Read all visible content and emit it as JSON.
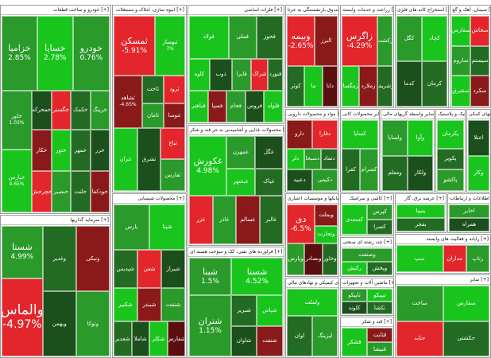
{
  "colors": {
    "strong_green": "#19c51c",
    "green": "#2a9a2a",
    "dark_green": "#236b23",
    "deep_green": "#1b4f1b",
    "red": "#e3262b",
    "dark_red": "#8a1a1a",
    "deep_red": "#5a0e0e"
  },
  "sectors": [
    {
      "key": "s1",
      "title": "خودرو و ساخت قطعات [+]",
      "tiles": [
        {
          "name": "خودرو",
          "pct": "0.76%"
        },
        {
          "name": "خساپا",
          "pct": "2.78%"
        },
        {
          "name": "خزامیا",
          "pct": "2.85%"
        },
        {
          "name": "خاور",
          "pct": "1.03%"
        },
        {
          "name": "خپارس",
          "pct": "4.65%"
        },
        {
          "name": "خمحرکه",
          "pct": ""
        },
        {
          "name": "خگستر",
          "pct": ""
        },
        {
          "name": "خکمک",
          "pct": ""
        },
        {
          "name": "خرینگ",
          "pct": ""
        },
        {
          "name": "خکار",
          "pct": ""
        },
        {
          "name": "ختور",
          "pct": ""
        },
        {
          "name": "خمهر",
          "pct": ""
        },
        {
          "name": "خزر",
          "pct": ""
        },
        {
          "name": "خچرخش",
          "pct": ""
        },
        {
          "name": "خنصیر",
          "pct": ""
        },
        {
          "name": "خلنت",
          "pct": ""
        },
        {
          "name": "خودکفا",
          "pct": ""
        },
        {
          "name": "خشرق",
          "pct": ""
        },
        {
          "name": "خاهن",
          "pct": ""
        }
      ]
    },
    {
      "key": "s2",
      "title": "انبوه سازی، املاک و مستغلات [+]",
      "tiles": [
        {
          "name": "ثمسکن",
          "pct": "-5.91%"
        },
        {
          "name": "ثبهساز",
          "pct": "7%"
        },
        {
          "name": "ثشاهد",
          "pct": "-4.65%"
        },
        {
          "name": "ثاخت",
          "pct": ""
        },
        {
          "name": "ثرود",
          "pct": ""
        },
        {
          "name": "ثامان",
          "pct": ""
        },
        {
          "name": "ثنوسا",
          "pct": ""
        },
        {
          "name": "ثتران",
          "pct": ""
        },
        {
          "name": "ثشرق",
          "pct": ""
        },
        {
          "name": "ثباغ",
          "pct": ""
        },
        {
          "name": "ثفارس",
          "pct": ""
        }
      ]
    },
    {
      "key": "s3",
      "title": "فلزات اساسی [+]",
      "tiles": [
        {
          "name": "فولاد",
          "pct": ""
        },
        {
          "name": "فملی",
          "pct": ""
        },
        {
          "name": "فخوز",
          "pct": ""
        },
        {
          "name": "کاوه",
          "pct": ""
        },
        {
          "name": "ذوب",
          "pct": ""
        },
        {
          "name": "فایرا",
          "pct": ""
        },
        {
          "name": "شراک",
          "pct": ""
        },
        {
          "name": "فنورد",
          "pct": ""
        },
        {
          "name": "فباهنر",
          "pct": ""
        },
        {
          "name": "فسپا",
          "pct": ""
        },
        {
          "name": "فجام",
          "pct": ""
        },
        {
          "name": "فروس",
          "pct": ""
        },
        {
          "name": "فلوله",
          "pct": ""
        },
        {
          "name": "فاسمین",
          "pct": ""
        },
        {
          "name": "فرآور",
          "pct": ""
        }
      ]
    },
    {
      "key": "s4",
      "title": "بیمه وصندوق بازنشستگی به جزتا [+]",
      "tiles": [
        {
          "name": "وبیمه",
          "pct": "-2.65%"
        },
        {
          "name": "البرز",
          "pct": ""
        },
        {
          "name": "کوثر",
          "pct": ""
        },
        {
          "name": "ما",
          "pct": ""
        },
        {
          "name": "دانا",
          "pct": ""
        },
        {
          "name": "آسیا",
          "pct": ""
        },
        {
          "name": "بپاس",
          "pct": ""
        },
        {
          "name": "اتکای",
          "pct": ""
        },
        {
          "name": "بنو",
          "pct": ""
        }
      ]
    },
    {
      "key": "s5",
      "title": "زراعت و خدمات وابسته [+]",
      "tiles": [
        {
          "name": "زاگرس",
          "pct": "-4.29%"
        },
        {
          "name": "زکشت",
          "pct": ""
        },
        {
          "name": "زمگسا",
          "pct": ""
        },
        {
          "name": "زملارد",
          "pct": ""
        },
        {
          "name": "زشریف",
          "pct": ""
        },
        {
          "name": "زدشت",
          "pct": ""
        },
        {
          "name": "زفجر",
          "pct": ""
        }
      ]
    },
    {
      "key": "s6",
      "title": "استخراج کانه های فلزی [+]",
      "tiles": [
        {
          "name": "کگل",
          "pct": ""
        },
        {
          "name": "کچاد",
          "pct": ""
        },
        {
          "name": "کدما",
          "pct": ""
        },
        {
          "name": "کرمان",
          "pct": ""
        },
        {
          "name": "کمنگنز",
          "pct": ""
        },
        {
          "name": "کطبس",
          "pct": ""
        }
      ]
    },
    {
      "key": "s7",
      "title": "سیمان، آهک و گچ [+]",
      "tiles": [
        {
          "name": "سفارس",
          "pct": ""
        },
        {
          "name": "سخاش",
          "pct": ""
        },
        {
          "name": "ساروم",
          "pct": ""
        },
        {
          "name": "سیستم",
          "pct": ""
        },
        {
          "name": "سشرق",
          "pct": ""
        },
        {
          "name": "سکرد",
          "pct": ""
        },
        {
          "name": "سفار",
          "pct": ""
        },
        {
          "name": "سهگمت",
          "pct": ""
        },
        {
          "name": "ساربیل",
          "pct": ""
        }
      ]
    },
    {
      "key": "s8",
      "title": "محصولات غذایی و آشامیدنی به جز قند و شکر [+]",
      "tiles": [
        {
          "name": "غکورش",
          "pct": "4.98%"
        },
        {
          "name": "غمهرن",
          "pct": ""
        },
        {
          "name": "غگل",
          "pct": ""
        },
        {
          "name": "غبشهر",
          "pct": ""
        },
        {
          "name": "غپاک",
          "pct": ""
        },
        {
          "name": "غزر",
          "pct": ""
        },
        {
          "name": "غاذر",
          "pct": ""
        },
        {
          "name": "غسالم",
          "pct": ""
        },
        {
          "name": "غالبر",
          "pct": ""
        },
        {
          "name": "غپینو",
          "pct": ""
        },
        {
          "name": "غشهد",
          "pct": ""
        },
        {
          "name": "غدشت",
          "pct": ""
        }
      ]
    },
    {
      "key": "s9",
      "title": "مواد و محصولات دارویی [+]",
      "tiles": [
        {
          "name": "دارو",
          "pct": ""
        },
        {
          "name": "دفارا",
          "pct": ""
        },
        {
          "name": "دلر",
          "pct": ""
        },
        {
          "name": "دسبحا",
          "pct": ""
        },
        {
          "name": "دتماد",
          "pct": ""
        },
        {
          "name": "دعبید",
          "pct": ""
        },
        {
          "name": "دکیمی",
          "pct": ""
        }
      ]
    },
    {
      "key": "s10",
      "title": "سایر محصولات کانی [+]",
      "tiles": [
        {
          "name": "کساپا",
          "pct": ""
        },
        {
          "name": "کفرا",
          "pct": ""
        },
        {
          "name": "کسرام",
          "pct": ""
        },
        {
          "name": "کلوند",
          "pct": ""
        }
      ]
    },
    {
      "key": "s11",
      "title": "سایر واسطه گریهای مالی [+]",
      "tiles": [
        {
          "name": "ولساپا",
          "pct": ""
        },
        {
          "name": "وآوا",
          "pct": ""
        },
        {
          "name": "ومعلم",
          "pct": ""
        },
        {
          "name": "ولکار",
          "pct": ""
        }
      ]
    },
    {
      "key": "s12",
      "title": "لاستیک و پلاستیک [+]",
      "tiles": [
        {
          "name": "پکرمان",
          "pct": ""
        },
        {
          "name": "پکویر",
          "pct": ""
        },
        {
          "name": "پاکشو",
          "pct": ""
        }
      ]
    },
    {
      "key": "s13",
      "title": "فعالیتهای کمکی [+]",
      "tiles": [
        {
          "name": "اعتلا",
          "pct": ""
        },
        {
          "name": "وکار",
          "pct": ""
        }
      ]
    },
    {
      "key": "s14",
      "title": "بانکها و موسسات اعتباری [+]",
      "tiles": [
        {
          "name": "دی",
          "pct": "-6.5%"
        },
        {
          "name": "وبملت",
          "pct": ""
        },
        {
          "name": "وتجارت",
          "pct": ""
        },
        {
          "name": "وپارس",
          "pct": ""
        },
        {
          "name": "وبصادر",
          "pct": ""
        },
        {
          "name": "وخاور",
          "pct": ""
        },
        {
          "name": "وپست",
          "pct": ""
        },
        {
          "name": "وسینا",
          "pct": ""
        }
      ]
    },
    {
      "key": "s15",
      "title": "کاشی و سرامیک [+]",
      "tiles": [
        {
          "name": "کسعدی",
          "pct": ""
        },
        {
          "name": "کپرس",
          "pct": ""
        },
        {
          "name": "کسرا",
          "pct": ""
        }
      ]
    },
    {
      "key": "s16",
      "title": "سرمایه گذاریها [+]",
      "tiles": [
        {
          "name": "شستا",
          "pct": "4.99%"
        },
        {
          "name": "والماس",
          "pct": "-4.97%"
        },
        {
          "name": "وغدیر",
          "pct": ""
        },
        {
          "name": "ونیکی",
          "pct": ""
        },
        {
          "name": "وبهمن",
          "pct": ""
        },
        {
          "name": "وتوکا",
          "pct": ""
        },
        {
          "name": "وصندوق",
          "pct": ""
        },
        {
          "name": "وسپه",
          "pct": ""
        },
        {
          "name": "وصنا",
          "pct": ""
        },
        {
          "name": "وبوعلی",
          "pct": ""
        }
      ]
    },
    {
      "key": "s17",
      "title": "محصولات شیمیایی [+]",
      "tiles": [
        {
          "name": "پارس",
          "pct": ""
        },
        {
          "name": "شپنا",
          "pct": ""
        },
        {
          "name": "شپدیس",
          "pct": ""
        },
        {
          "name": "شفن",
          "pct": ""
        },
        {
          "name": "شیراز",
          "pct": ""
        },
        {
          "name": "شکبیر",
          "pct": ""
        },
        {
          "name": "شبندر",
          "pct": ""
        },
        {
          "name": "شنفت",
          "pct": ""
        },
        {
          "name": "شغدیر",
          "pct": ""
        },
        {
          "name": "شاملا",
          "pct": ""
        },
        {
          "name": "شکلر",
          "pct": ""
        },
        {
          "name": "شفارس",
          "pct": ""
        },
        {
          "name": "شلعاب",
          "pct": ""
        },
        {
          "name": "شبصیر",
          "pct": ""
        },
        {
          "name": "شرنگی",
          "pct": ""
        },
        {
          "name": "شسپا",
          "pct": ""
        }
      ]
    },
    {
      "key": "s18",
      "title": "فراورده های نفتی، کک و سوخت هسته ای [+]",
      "tiles": [
        {
          "name": "شستا",
          "pct": "4.52%"
        },
        {
          "name": "شبنا",
          "pct": "1.5%"
        },
        {
          "name": "شتران",
          "pct": "1.15%"
        },
        {
          "name": "شبریز",
          "pct": ""
        },
        {
          "name": "شپاس",
          "pct": ""
        },
        {
          "name": "شاوان",
          "pct": ""
        },
        {
          "name": "شنفت",
          "pct": ""
        },
        {
          "name": "شبهرن",
          "pct": ""
        },
        {
          "name": "شسینا",
          "pct": ""
        }
      ]
    },
    {
      "key": "s19",
      "title": "چند رشته ای صنعتی [+]",
      "tiles": [
        {
          "name": "وصنعت",
          "pct": ""
        },
        {
          "name": "رکیش",
          "pct": ""
        },
        {
          "name": "وپخش",
          "pct": ""
        }
      ]
    },
    {
      "key": "s20",
      "title": "عرضه برق، گاز [+]",
      "tiles": [
        {
          "name": "بمپنا",
          "pct": ""
        },
        {
          "name": "بفجر",
          "pct": ""
        }
      ]
    },
    {
      "key": "s21",
      "title": "اطلاعات و ارتباطات [+]",
      "tiles": [
        {
          "name": "اخابر",
          "pct": ""
        },
        {
          "name": "همراه",
          "pct": ""
        }
      ]
    },
    {
      "key": "s22",
      "title": "رایانه و فعالیت های وابسته [+]",
      "tiles": [
        {
          "name": "سپ",
          "pct": ""
        },
        {
          "name": "مداران",
          "pct": ""
        },
        {
          "name": "رتاپ",
          "pct": ""
        }
      ]
    },
    {
      "key": "s23",
      "title": "شرکتهای کیمیکی و نهادهای مالی [+]",
      "tiles": [
        {
          "name": "ولملت",
          "pct": ""
        },
        {
          "name": "اوان",
          "pct": ""
        },
        {
          "name": "لیزینگ",
          "pct": ""
        }
      ]
    },
    {
      "key": "s24",
      "title": "ماشین آلات و تجهیزات [+]",
      "tiles": [
        {
          "name": "تاپیکو",
          "pct": ""
        },
        {
          "name": "تیپیکو",
          "pct": ""
        },
        {
          "name": "کلوند",
          "pct": ""
        },
        {
          "name": "تکشا",
          "pct": ""
        }
      ]
    },
    {
      "key": "s25",
      "title": "قند و شکر [+]",
      "tiles": [
        {
          "name": "قشکر",
          "pct": ""
        },
        {
          "name": "قثابت",
          "pct": ""
        },
        {
          "name": "قنیشا",
          "pct": ""
        }
      ]
    },
    {
      "key": "s26",
      "title": "سایر [+]",
      "tiles": [
        {
          "name": "ساخت",
          "pct": ""
        },
        {
          "name": "سفارس",
          "pct": ""
        },
        {
          "name": "حتاید",
          "pct": ""
        },
        {
          "name": "حکشتی",
          "pct": ""
        }
      ]
    }
  ]
}
